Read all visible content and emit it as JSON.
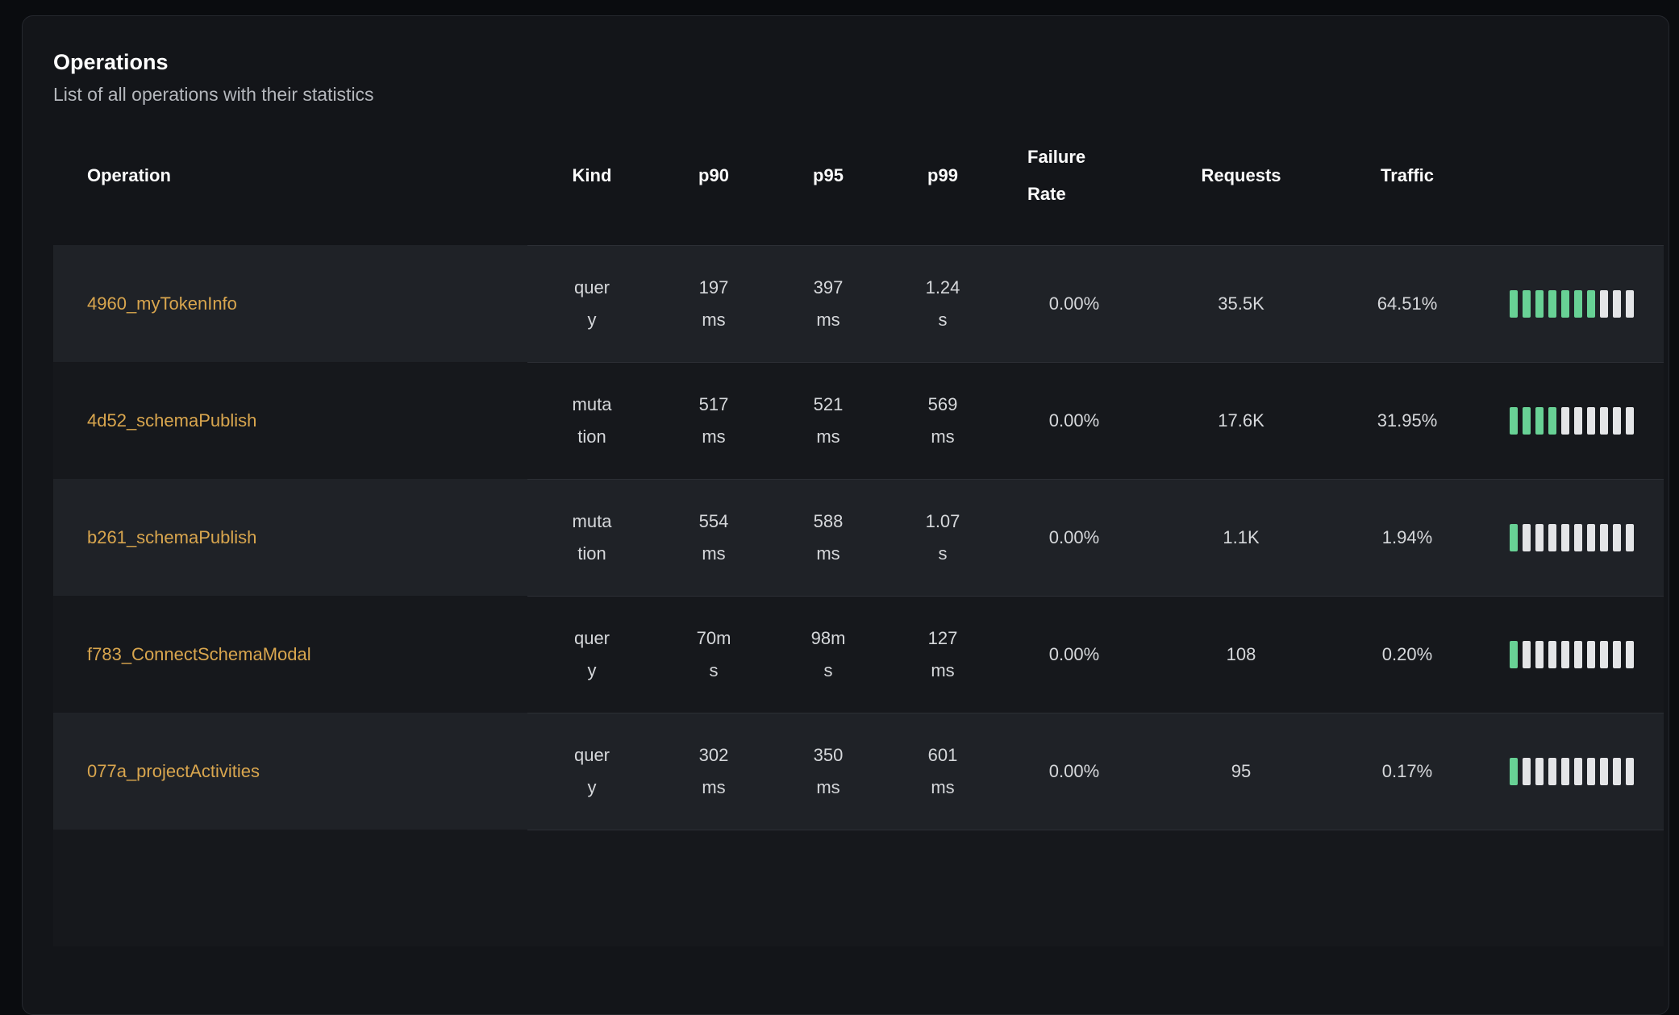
{
  "page": {
    "title": "Operations",
    "subtitle": "List of all operations with their statistics"
  },
  "table": {
    "columns": [
      {
        "key": "operation",
        "label": "Operation"
      },
      {
        "key": "kind",
        "label": "Kind"
      },
      {
        "key": "p90",
        "label": "p90"
      },
      {
        "key": "p95",
        "label": "p95"
      },
      {
        "key": "p99",
        "label": "p99"
      },
      {
        "key": "failure_rate",
        "label": "Failure Rate"
      },
      {
        "key": "requests",
        "label": "Requests"
      },
      {
        "key": "traffic",
        "label": "Traffic"
      },
      {
        "key": "traffic_chart",
        "label": ""
      }
    ],
    "rows": [
      {
        "operation": "4960_myTokenInfo",
        "kind": "query",
        "p90": "197ms",
        "p95": "397ms",
        "p99": "1.24s",
        "failure_rate": "0.00%",
        "requests": "35.5K",
        "traffic": "64.51%",
        "traffic_bars": {
          "total": 10,
          "filled": 7
        }
      },
      {
        "operation": "4d52_schemaPublish",
        "kind": "mutation",
        "p90": "517ms",
        "p95": "521ms",
        "p99": "569ms",
        "failure_rate": "0.00%",
        "requests": "17.6K",
        "traffic": "31.95%",
        "traffic_bars": {
          "total": 10,
          "filled": 4
        }
      },
      {
        "operation": "b261_schemaPublish",
        "kind": "mutation",
        "p90": "554ms",
        "p95": "588ms",
        "p99": "1.07s",
        "failure_rate": "0.00%",
        "requests": "1.1K",
        "traffic": "1.94%",
        "traffic_bars": {
          "total": 10,
          "filled": 1
        }
      },
      {
        "operation": "f783_ConnectSchemaModal",
        "kind": "query",
        "p90": "70ms",
        "p95": "98ms",
        "p99": "127ms",
        "failure_rate": "0.00%",
        "requests": "108",
        "traffic": "0.20%",
        "traffic_bars": {
          "total": 10,
          "filled": 1
        }
      },
      {
        "operation": "077a_projectActivities",
        "kind": "query",
        "p90": "302ms",
        "p95": "350ms",
        "p99": "601ms",
        "failure_rate": "0.00%",
        "requests": "95",
        "traffic": "0.17%",
        "traffic_bars": {
          "total": 10,
          "filled": 1
        }
      }
    ],
    "partial_next_row": true
  },
  "colors": {
    "accent_link": "#d9a64e",
    "bar_filled": "#68d195",
    "bar_empty": "#e4e5e7",
    "row_light": "#1f2227",
    "row_dark": "#16181c",
    "card_background": "#131519"
  }
}
